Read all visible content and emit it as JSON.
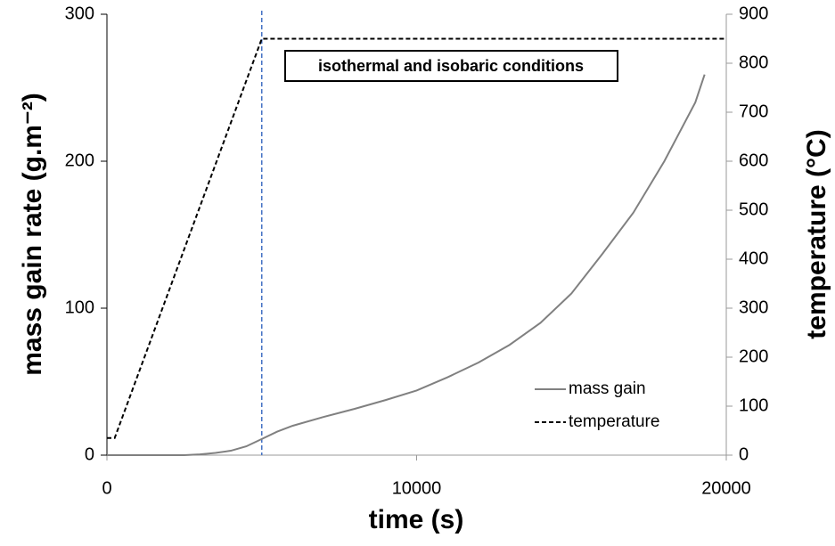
{
  "chart_data": {
    "type": "line",
    "x_label": "time (s)",
    "y_label": "mass gain rate (g.m⁻²)",
    "y2_label": "temperature (°C)",
    "annotation": "isothermal and isobaric conditions",
    "reference_line": {
      "x": 5000,
      "color": "#4472c4"
    },
    "xlim": [
      0,
      20000
    ],
    "xticks": [
      0,
      10000,
      20000
    ],
    "ylim": [
      0,
      300
    ],
    "yticks": [
      0,
      100,
      200,
      300
    ],
    "y2lim": [
      0,
      900
    ],
    "y2ticks": [
      0,
      100,
      200,
      300,
      400,
      500,
      600,
      700,
      800,
      900
    ],
    "legend": "lower right",
    "series": [
      {
        "name": "mass gain",
        "color": "#808080",
        "dash": "solid",
        "axis": "y",
        "x": [
          0,
          2000,
          2500,
          3000,
          3500,
          4000,
          4500,
          5000,
          5500,
          6000,
          7000,
          8000,
          9000,
          10000,
          11000,
          12000,
          13000,
          14000,
          15000,
          16000,
          17000,
          18000,
          19000,
          19300
        ],
        "values": [
          0,
          0,
          0,
          0.5,
          1.5,
          3,
          6,
          11,
          16,
          20,
          26,
          31.5,
          37.5,
          44,
          53,
          63,
          75,
          90,
          110,
          137,
          165,
          200,
          240,
          259
        ]
      },
      {
        "name": "temperature",
        "color": "#000000",
        "dash": "dashed",
        "axis": "y2",
        "x": [
          0,
          250,
          5000,
          20000
        ],
        "values": [
          35,
          35,
          850,
          850
        ]
      }
    ]
  }
}
